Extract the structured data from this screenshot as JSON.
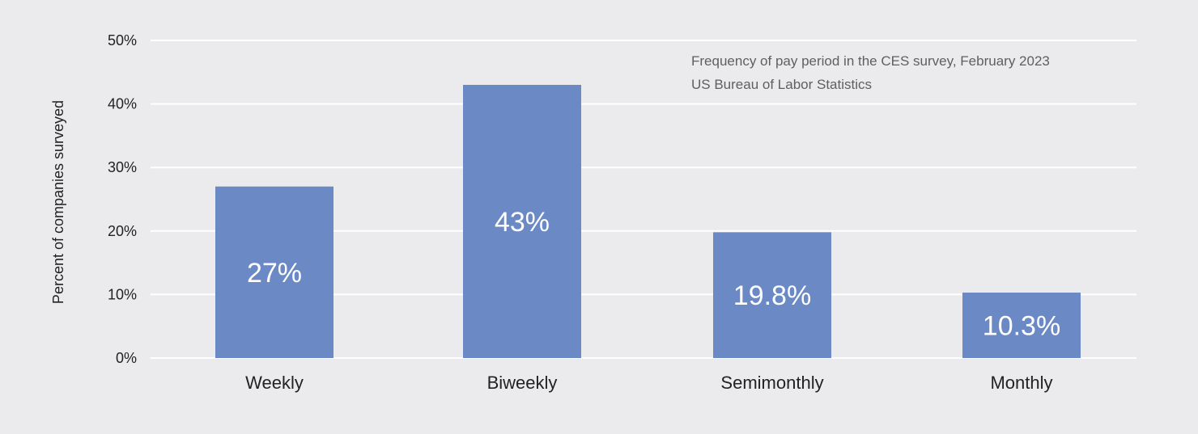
{
  "chart_data": {
    "type": "bar",
    "categories": [
      "Weekly",
      "Biweekly",
      "Semimonthly",
      "Monthly"
    ],
    "values": [
      27,
      43,
      19.8,
      10.3
    ],
    "data_labels": [
      "27%",
      "43%",
      "19.8%",
      "10.3%"
    ],
    "title": "",
    "xlabel": "",
    "ylabel": "Percent of companies surveyed",
    "ylim": [
      0,
      50
    ],
    "yticks": [
      0,
      10,
      20,
      30,
      40,
      50
    ],
    "ytick_labels": [
      "0%",
      "10%",
      "20%",
      "30%",
      "40%",
      "50%"
    ],
    "annotation_lines": [
      "Frequency of pay period in the CES survey, February 2023",
      "US Bureau of Labor Statistics"
    ],
    "grid": true,
    "legend": "none",
    "colors": {
      "bar": "#6a89c5",
      "grid": "#ffffff",
      "background": "#ebebed"
    }
  }
}
